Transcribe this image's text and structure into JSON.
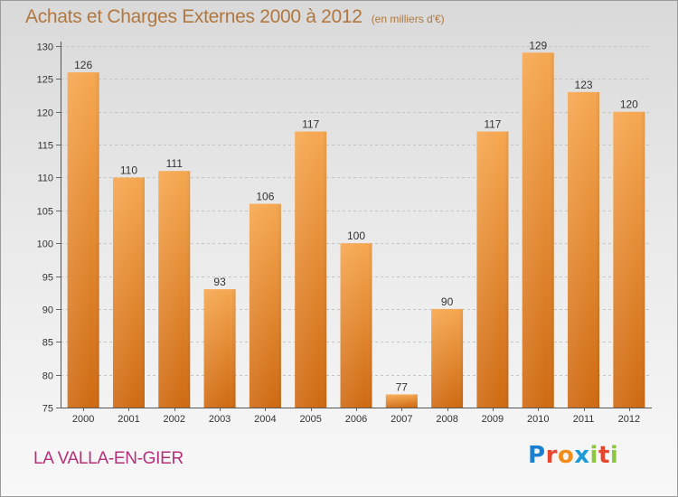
{
  "title": "Achats et Charges Externes 2000 à 2012",
  "title_unit": "(en milliers d'€)",
  "commune": "LA VALLA-EN-GIER",
  "logo": {
    "letters": [
      "P",
      "r",
      "o",
      "x",
      "i",
      "t",
      "i"
    ],
    "colors": [
      "#1a7fd0",
      "#e8462c",
      "#f28c1a",
      "#1a9ad6",
      "#8dc63f",
      "#e8462c",
      "#8dc63f"
    ]
  },
  "colors": {
    "bar_light": "#f6a750",
    "bar_dark": "#cf6a12",
    "title": "#b07840",
    "commune": "#b5307a"
  },
  "chart_data": {
    "type": "bar",
    "title": "Achats et Charges Externes 2000 à 2012",
    "categories": [
      "2000",
      "2001",
      "2002",
      "2003",
      "2004",
      "2005",
      "2006",
      "2007",
      "2008",
      "2009",
      "2010",
      "2011",
      "2012"
    ],
    "values": [
      126,
      110,
      111,
      93,
      106,
      117,
      100,
      77,
      90,
      117,
      129,
      123,
      120
    ],
    "ylim": [
      75,
      130
    ],
    "yticks": [
      75,
      80,
      85,
      90,
      95,
      100,
      105,
      110,
      115,
      120,
      125,
      130
    ],
    "grid": true,
    "legend": "none"
  }
}
